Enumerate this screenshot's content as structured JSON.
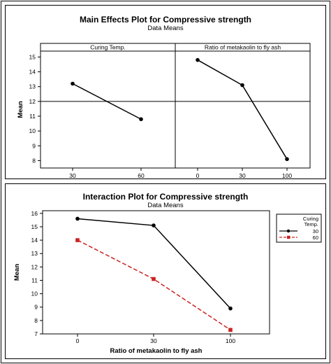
{
  "chart_data": [
    {
      "type": "line",
      "title": "Main Effects Plot for Compressive strength",
      "subtitle": "Data Means",
      "ylabel": "Mean",
      "ylim": [
        7.5,
        15.4
      ],
      "yticks": [
        8,
        9,
        10,
        11,
        12,
        13,
        14,
        15
      ],
      "reference_line": 12,
      "panels": [
        {
          "label": "Curing Temp.",
          "categories": [
            "30",
            "60"
          ],
          "values": [
            13.2,
            10.8
          ]
        },
        {
          "label": "Ratio of metakaolin to fly ash",
          "categories": [
            "0",
            "30",
            "100"
          ],
          "values": [
            14.8,
            13.1,
            8.1
          ]
        }
      ]
    },
    {
      "type": "line",
      "title": "Interaction Plot for Compressive strength",
      "subtitle": "Data Means",
      "xlabel": "Ratio of metakaolin to fly ash",
      "ylabel": "Mean",
      "ylim": [
        7,
        16.2
      ],
      "yticks": [
        7,
        8,
        9,
        10,
        11,
        12,
        13,
        14,
        15,
        16
      ],
      "categories": [
        "0",
        "30",
        "100"
      ],
      "legend_title_line1": "Curing",
      "legend_title_line2": "Temp.",
      "legend_position": "right",
      "series": [
        {
          "name": "30",
          "values": [
            15.6,
            15.1,
            8.9
          ],
          "color": "#000000",
          "marker": "circle",
          "dash": false
        },
        {
          "name": "60",
          "values": [
            14.0,
            11.1,
            7.3
          ],
          "color": "#cc2222",
          "marker": "square",
          "dash": true
        }
      ]
    }
  ]
}
